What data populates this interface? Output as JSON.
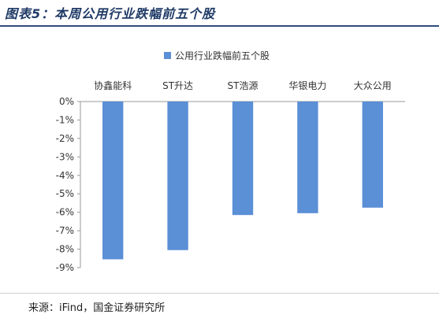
{
  "figure_title": "图表5：本周公用行业跌幅前五个股",
  "source_text": "来源：iFind，国金证券研究所",
  "colors": {
    "bar": "#5b8fd6",
    "title": "#1f3a66",
    "axis": "#9a9a9a",
    "text": "#333333"
  },
  "chart_data": {
    "type": "bar",
    "title": "",
    "legend": {
      "position": "top",
      "entries": [
        "公用行业跌幅前五个股"
      ]
    },
    "categories": [
      "协鑫能科",
      "ST升达",
      "ST浩源",
      "华银电力",
      "大众公用"
    ],
    "series": [
      {
        "name": "公用行业跌幅前五个股",
        "values": [
          -8.55,
          -8.05,
          -6.15,
          -6.05,
          -5.75
        ]
      }
    ],
    "xlabel": "",
    "ylabel": "",
    "ylim": [
      -9,
      0
    ],
    "yticks": [
      0,
      -1,
      -2,
      -3,
      -4,
      -5,
      -6,
      -7,
      -8,
      -9
    ],
    "ytick_labels": [
      "0%",
      "-1%",
      "-2%",
      "-3%",
      "-4%",
      "-5%",
      "-6%",
      "-7%",
      "-8%",
      "-9%"
    ],
    "category_axis_position": "top",
    "grid": false
  }
}
